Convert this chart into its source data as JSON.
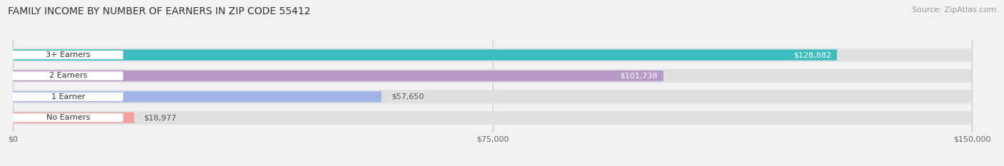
{
  "title": "FAMILY INCOME BY NUMBER OF EARNERS IN ZIP CODE 55412",
  "source": "Source: ZipAtlas.com",
  "categories": [
    "No Earners",
    "1 Earner",
    "2 Earners",
    "3+ Earners"
  ],
  "values": [
    18977,
    57650,
    101738,
    128882
  ],
  "max_value": 150000,
  "bar_colors": [
    "#f4a0a0",
    "#a0b4e8",
    "#b89ac8",
    "#3dbcbe"
  ],
  "label_colors": [
    "#555555",
    "#555555",
    "#ffffff",
    "#ffffff"
  ],
  "value_labels": [
    "$18,977",
    "$57,650",
    "$101,738",
    "$128,882"
  ],
  "x_ticks": [
    0,
    75000,
    150000
  ],
  "x_tick_labels": [
    "$0",
    "$75,000",
    "$150,000"
  ],
  "title_fontsize": 10,
  "source_fontsize": 8,
  "background_color": "#f2f2f2",
  "bar_bg_fill": "#e0e0e0"
}
